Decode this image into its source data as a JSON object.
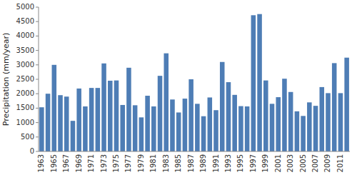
{
  "chart_data": {
    "type": "bar",
    "categories": [
      "1963",
      null,
      "1965",
      null,
      "1967",
      null,
      "1969",
      null,
      "1971",
      null,
      "1973",
      null,
      "1975",
      null,
      "1977",
      null,
      "1979",
      null,
      "1981",
      null,
      "1983",
      null,
      "1985",
      null,
      "1987",
      null,
      "1989",
      null,
      "1991",
      null,
      "1993",
      null,
      "1995",
      null,
      "1997",
      null,
      "1999",
      null,
      "2001",
      null,
      "2003",
      null,
      "2005",
      null,
      "2007",
      null,
      "2009",
      null,
      "2011",
      null
    ],
    "values": [
      1530,
      2000,
      3000,
      1950,
      1900,
      1060,
      2180,
      1560,
      2200,
      2200,
      3050,
      2450,
      2460,
      1610,
      2900,
      1600,
      1180,
      1930,
      1560,
      2620,
      3400,
      1800,
      1350,
      1830,
      2500,
      1650,
      1220,
      1870,
      1430,
      3100,
      2400,
      1960,
      1570,
      1560,
      4720,
      4760,
      2460,
      1650,
      1880,
      2520,
      2060,
      1390,
      1230,
      1700,
      1580,
      2230,
      2020,
      3060,
      2020,
      3250
    ],
    "color": "#4e7db5",
    "ylabel": "Precipitation (mm/year)",
    "ylim": [
      0,
      5000
    ],
    "yticks": [
      0,
      500,
      1000,
      1500,
      2000,
      2500,
      3000,
      3500,
      4000,
      4500,
      5000
    ],
    "grid": false
  }
}
